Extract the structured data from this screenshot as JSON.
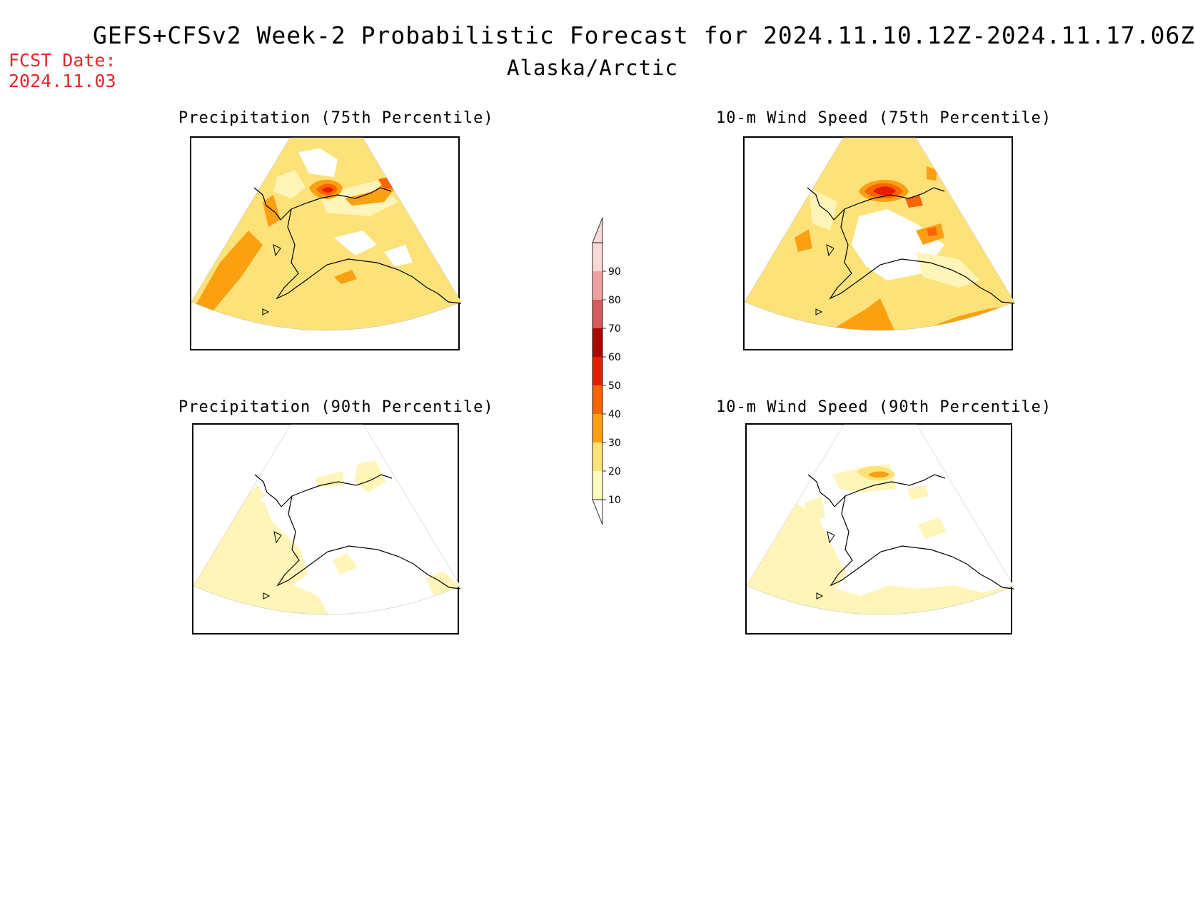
{
  "header": {
    "title": "GEFS+CFSv2 Week-2 Probabilistic Forecast for 2024.11.10.12Z-2024.11.17.06Z",
    "region": "Alaska/Arctic",
    "fcst_date_label": "FCST Date:",
    "fcst_date_value": "2024.11.03"
  },
  "panels": [
    {
      "title": "Precipitation (75th Percentile)"
    },
    {
      "title": "10-m Wind Speed (75th Percentile)"
    },
    {
      "title": "Precipitation (90th Percentile)"
    },
    {
      "title": "10-m Wind Speed (90th Percentile)"
    }
  ],
  "colorbar": {
    "levels": [
      "10",
      "20",
      "30",
      "40",
      "50",
      "60",
      "70",
      "80",
      "90"
    ],
    "colors": [
      "#fffcc0",
      "#fde27a",
      "#fba010",
      "#fb6400",
      "#e61e00",
      "#a80800",
      "#d45c5c",
      "#f0a0a0",
      "#fbd8d8"
    ]
  },
  "colors": {
    "fcst_date": "#e8262a",
    "light_yellow": "#fff5b8",
    "yellow": "#fde27a",
    "orange": "#fba010",
    "dark_orange": "#fb6400",
    "red": "#e61e00"
  }
}
